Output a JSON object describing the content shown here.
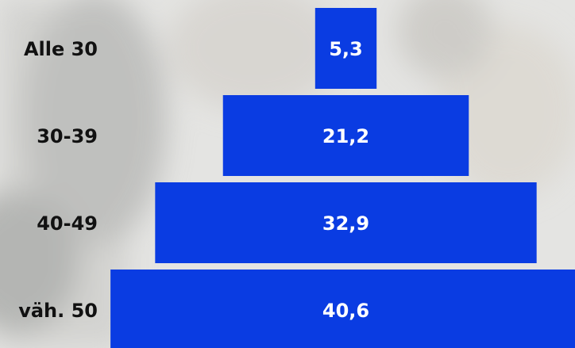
{
  "chart_data": {
    "type": "bar",
    "orientation": "centered",
    "categories": [
      "Alle 30",
      "30-39",
      "40-49",
      "väh. 50"
    ],
    "values": [
      5.3,
      21.2,
      32.9,
      40.6
    ],
    "value_labels": [
      "5,3",
      "21,2",
      "32,9",
      "40,6"
    ],
    "color": "#0a3ce2"
  }
}
